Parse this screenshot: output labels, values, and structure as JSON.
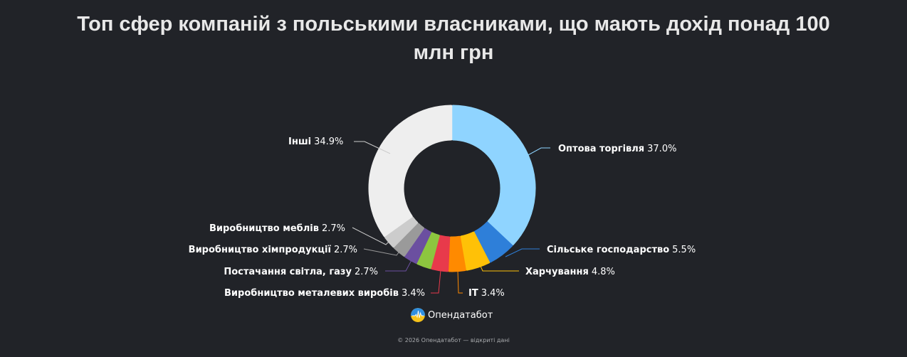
{
  "title": {
    "line1": "Топ сфер компаній з польськими власниками, що мають дохід понад 100",
    "line2": "млн грн"
  },
  "chart_data": {
    "type": "pie",
    "subtype": "donut",
    "title": "Топ сфер компаній з польськими власниками, що мають дохід понад 100 млн грн",
    "unit": "%",
    "start_angle": "top, clockwise",
    "slices": [
      {
        "label": "Оптова торгівля",
        "value": 37.0,
        "color": "#8fd4ff",
        "display": "37.0%"
      },
      {
        "label": "Сільське господарство",
        "value": 5.5,
        "color": "#2e7fd9",
        "display": "5.5%"
      },
      {
        "label": "Харчування",
        "value": 4.8,
        "color": "#ffc107",
        "display": "4.8%"
      },
      {
        "label": "IT",
        "value": 3.4,
        "color": "#ff8a00",
        "display": "3.4%"
      },
      {
        "label": "Виробництво металевих виробів",
        "value": 3.4,
        "color": "#e83a4b",
        "display": "3.4%"
      },
      {
        "label": "",
        "value": 2.9,
        "color": "#8dc63f",
        "display": ""
      },
      {
        "label": "Постачання світла, газу",
        "value": 2.7,
        "color": "#6b4fa0",
        "display": "2.7%"
      },
      {
        "label": "Виробництво хімпродукції",
        "value": 2.7,
        "color": "#9a9a9a",
        "display": "2.7%"
      },
      {
        "label": "Виробництво меблів",
        "value": 2.7,
        "color": "#cccccc",
        "display": "2.7%"
      },
      {
        "label": "Інші",
        "value": 34.9,
        "color": "#eeeeee",
        "display": "34.9%"
      }
    ],
    "legend": "none (leader-line labels)"
  },
  "labels": {
    "wholesale": {
      "name": "Оптова торгівля",
      "pct": "37.0%"
    },
    "agriculture": {
      "name": "Сільське господарство",
      "pct": "5.5%"
    },
    "food": {
      "name": "Харчування",
      "pct": "4.8%"
    },
    "it": {
      "name": "IT",
      "pct": "3.4%"
    },
    "metal": {
      "name": "Виробництво металевих виробів",
      "pct": "3.4%"
    },
    "energy": {
      "name": "Постачання світла, газу",
      "pct": "2.7%"
    },
    "chem": {
      "name": "Виробництво хімпродукції",
      "pct": "2.7%"
    },
    "furniture": {
      "name": "Виробництво меблів",
      "pct": "2.7%"
    },
    "other": {
      "name": "Інші",
      "pct": "34.9%"
    }
  },
  "brand": {
    "name": "Опендатабот"
  },
  "footer": {
    "text": "© 2026 Опендатабот — відкриті дані"
  }
}
